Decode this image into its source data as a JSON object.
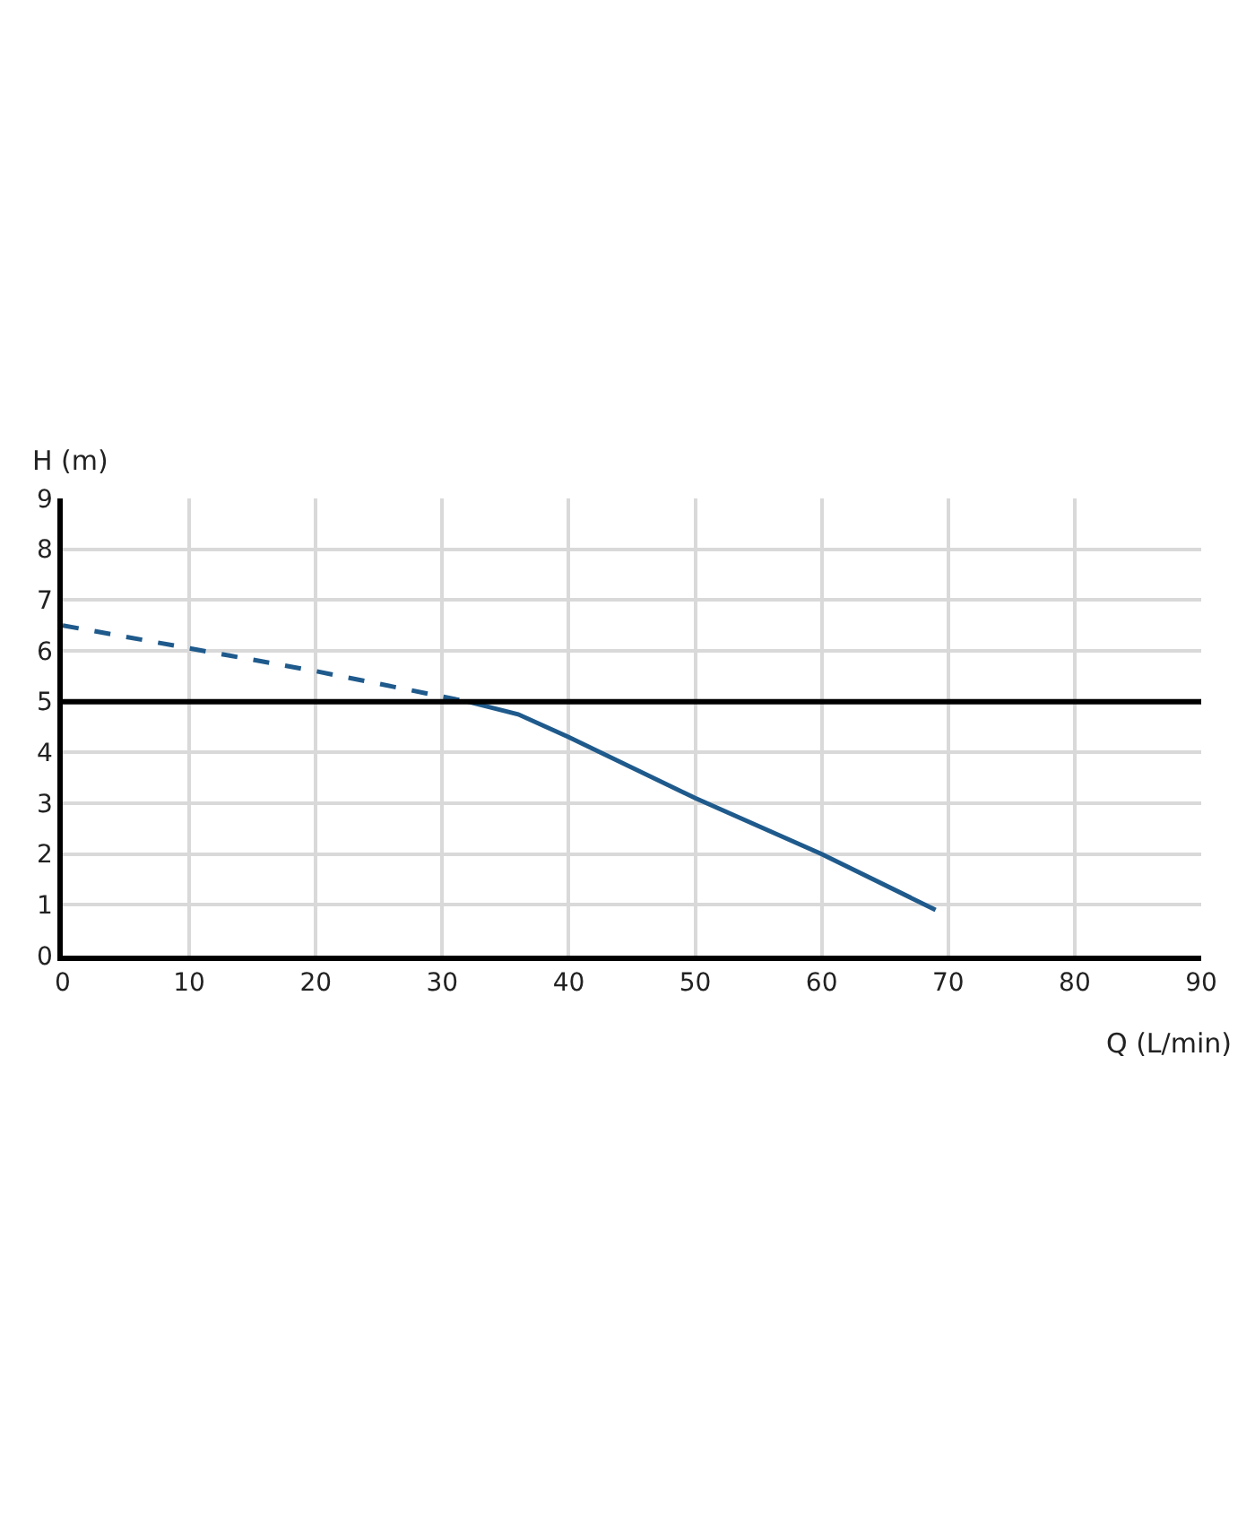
{
  "chart_data": {
    "type": "line",
    "xlabel": "Q (L/min)",
    "ylabel": "H (m)",
    "xlim": [
      0,
      90
    ],
    "xticks": [
      0,
      10,
      20,
      30,
      40,
      50,
      60,
      70,
      80,
      90
    ],
    "ylim": [
      0,
      9
    ],
    "yticks": [
      0,
      1,
      2,
      3,
      4,
      5,
      6,
      7,
      8,
      9
    ],
    "grid": true,
    "marker": "none",
    "series": [
      {
        "color": "#1f5a8c",
        "line_style": "dashed",
        "x": [
          0,
          10,
          20,
          32
        ],
        "values": [
          6.5,
          6.05,
          5.6,
          5.0
        ]
      },
      {
        "color": "#1f5a8c",
        "line_style": "solid",
        "x": [
          32,
          36,
          40,
          50,
          60,
          69
        ],
        "values": [
          5.0,
          4.75,
          4.3,
          3.1,
          2.0,
          0.9
        ]
      }
    ],
    "ref_lines": [
      {
        "axis": "y",
        "value": 5,
        "color": "#000000",
        "line_style": "solid"
      }
    ]
  }
}
